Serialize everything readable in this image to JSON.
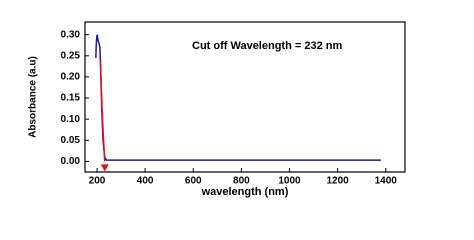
{
  "chart_data": {
    "type": "line",
    "annotation": "Cut off Wavelength = 232 nm",
    "x_label": "wavelength (nm)",
    "y_label": "Absorbance (a.u)",
    "xlim": [
      150,
      1480
    ],
    "ylim": [
      -0.025,
      0.33
    ],
    "xticks": [
      200,
      400,
      600,
      800,
      1000,
      1200,
      1400
    ],
    "yticks": [
      {
        "value": 0,
        "label": "0.00"
      },
      {
        "value": 0.05,
        "label": "0.05"
      },
      {
        "value": 0.1,
        "label": "0.10"
      },
      {
        "value": 0.15,
        "label": "0.15"
      },
      {
        "value": 0.2,
        "label": "0.20"
      },
      {
        "value": 0.25,
        "label": "0.25"
      },
      {
        "value": 0.3,
        "label": "0.30"
      }
    ],
    "grid": false,
    "series": [
      {
        "color": "#1a1a8c",
        "x": [
          195,
          197,
          199,
          201,
          203,
          205,
          208,
          212,
          216,
          220,
          225,
          232,
          240,
          300,
          600,
          1000,
          1380
        ],
        "values": [
          0.245,
          0.28,
          0.295,
          0.3,
          0.29,
          0.285,
          0.28,
          0.27,
          0.2,
          0.12,
          0.05,
          0.01,
          0.003,
          0.003,
          0.003,
          0.003,
          0.003
        ]
      },
      {
        "color": "#e01010",
        "x": [
          214,
          220,
          226,
          232
        ],
        "values": [
          0.24,
          0.14,
          0.06,
          0
        ]
      }
    ]
  }
}
